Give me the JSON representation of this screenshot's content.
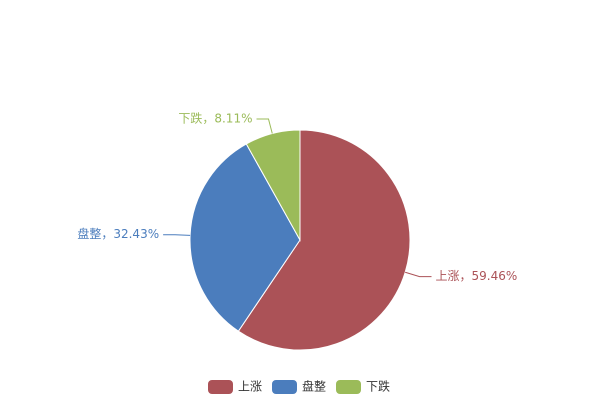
{
  "chart_data": {
    "type": "pie",
    "categories": [
      "上涨",
      "盘整",
      "下跌"
    ],
    "values": [
      59.46,
      32.43,
      8.11
    ],
    "value_labels": [
      "上涨，59.46%",
      "盘整，32.43%",
      "下跌，8.11%"
    ],
    "colors": [
      "#ab5257",
      "#4b7dbd",
      "#9bbb59"
    ],
    "legend": "bottom"
  }
}
